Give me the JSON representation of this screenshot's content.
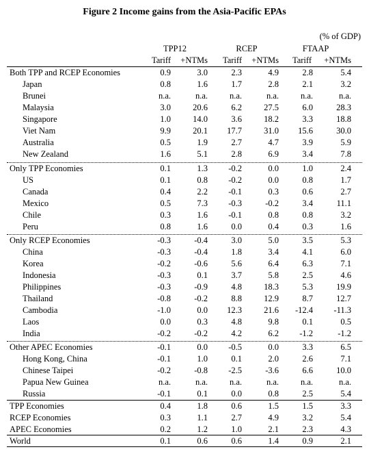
{
  "title": "Figure 2 Income gains from the Asia-Pacific EPAs",
  "unit": "(% of GDP)",
  "groups": [
    "TPP12",
    "RCEP",
    "FTAAP"
  ],
  "subheaders": [
    "Tariff",
    "+NTMs",
    "Tariff",
    "+NTMs",
    "Tariff",
    "+NTMs"
  ],
  "rows": [
    {
      "label": "Both TPP and RCEP Economies",
      "indent": false,
      "values": [
        "0.9",
        "3.0",
        "2.3",
        "4.9",
        "2.8",
        "5.4"
      ]
    },
    {
      "label": "Japan",
      "indent": true,
      "values": [
        "0.8",
        "1.6",
        "1.7",
        "2.8",
        "2.1",
        "3.2"
      ]
    },
    {
      "label": "Brunei",
      "indent": true,
      "values": [
        "n.a.",
        "n.a.",
        "n.a.",
        "n.a.",
        "n.a.",
        "n.a."
      ]
    },
    {
      "label": "Malaysia",
      "indent": true,
      "values": [
        "3.0",
        "20.6",
        "6.2",
        "27.5",
        "6.0",
        "28.3"
      ]
    },
    {
      "label": "Singapore",
      "indent": true,
      "values": [
        "1.0",
        "14.0",
        "3.6",
        "18.2",
        "3.3",
        "18.8"
      ]
    },
    {
      "label": "Viet Nam",
      "indent": true,
      "values": [
        "9.9",
        "20.1",
        "17.7",
        "31.0",
        "15.6",
        "30.0"
      ]
    },
    {
      "label": "Australia",
      "indent": true,
      "values": [
        "0.5",
        "1.9",
        "2.7",
        "4.7",
        "3.9",
        "5.9"
      ]
    },
    {
      "label": "New Zealand",
      "indent": true,
      "values": [
        "1.6",
        "5.1",
        "2.8",
        "6.9",
        "3.4",
        "7.8"
      ]
    },
    {
      "label": "Only TPP Economies",
      "indent": false,
      "values": [
        "0.1",
        "1.3",
        "-0.2",
        "0.0",
        "1.0",
        "2.4"
      ]
    },
    {
      "label": "US",
      "indent": true,
      "values": [
        "0.1",
        "0.8",
        "-0.2",
        "0.0",
        "0.8",
        "1.7"
      ]
    },
    {
      "label": "Canada",
      "indent": true,
      "values": [
        "0.4",
        "2.2",
        "-0.1",
        "0.3",
        "0.6",
        "2.7"
      ]
    },
    {
      "label": "Mexico",
      "indent": true,
      "values": [
        "0.5",
        "7.3",
        "-0.3",
        "-0.2",
        "3.4",
        "11.1"
      ]
    },
    {
      "label": "Chile",
      "indent": true,
      "values": [
        "0.3",
        "1.6",
        "-0.1",
        "0.8",
        "0.8",
        "3.2"
      ]
    },
    {
      "label": "Peru",
      "indent": true,
      "values": [
        "0.8",
        "1.6",
        "0.0",
        "0.4",
        "0.3",
        "1.6"
      ]
    },
    {
      "label": "Only RCEP Economies",
      "indent": false,
      "values": [
        "-0.3",
        "-0.4",
        "3.0",
        "5.0",
        "3.5",
        "5.3"
      ]
    },
    {
      "label": "China",
      "indent": true,
      "values": [
        "-0.3",
        "-0.4",
        "1.8",
        "3.4",
        "4.1",
        "6.0"
      ]
    },
    {
      "label": "Korea",
      "indent": true,
      "values": [
        "-0.2",
        "-0.6",
        "5.6",
        "6.4",
        "6.3",
        "7.1"
      ]
    },
    {
      "label": "Indonesia",
      "indent": true,
      "values": [
        "-0.3",
        "0.1",
        "3.7",
        "5.8",
        "2.5",
        "4.6"
      ]
    },
    {
      "label": "Philippines",
      "indent": true,
      "values": [
        "-0.3",
        "-0.9",
        "4.8",
        "18.3",
        "5.3",
        "19.9"
      ]
    },
    {
      "label": "Thailand",
      "indent": true,
      "values": [
        "-0.8",
        "-0.2",
        "8.8",
        "12.9",
        "8.7",
        "12.7"
      ]
    },
    {
      "label": "Cambodia",
      "indent": true,
      "values": [
        "-1.0",
        "0.0",
        "12.3",
        "21.6",
        "-12.4",
        "-11.3"
      ]
    },
    {
      "label": "Laos",
      "indent": true,
      "values": [
        "0.0",
        "0.3",
        "4.8",
        "9.8",
        "0.1",
        "0.5"
      ]
    },
    {
      "label": "India",
      "indent": true,
      "values": [
        "-0.2",
        "-0.2",
        "4.2",
        "6.2",
        "-1.2",
        "-1.2"
      ]
    },
    {
      "label": "Other APEC Economies",
      "indent": false,
      "values": [
        "-0.1",
        "0.0",
        "-0.5",
        "0.0",
        "3.3",
        "6.5"
      ]
    },
    {
      "label": "Hong Kong, China",
      "indent": true,
      "values": [
        "-0.1",
        "1.0",
        "0.1",
        "2.0",
        "2.6",
        "7.1"
      ]
    },
    {
      "label": "Chinese Taipei",
      "indent": true,
      "values": [
        "-0.2",
        "-0.8",
        "-2.5",
        "-3.6",
        "6.6",
        "10.0"
      ]
    },
    {
      "label": "Papua New Guinea",
      "indent": true,
      "values": [
        "n.a.",
        "n.a.",
        "n.a.",
        "n.a.",
        "n.a.",
        "n.a."
      ]
    },
    {
      "label": "Russia",
      "indent": true,
      "values": [
        "-0.1",
        "0.1",
        "0.0",
        "0.8",
        "2.5",
        "5.4"
      ]
    },
    {
      "label": "TPP Economies",
      "indent": false,
      "values": [
        "0.4",
        "1.8",
        "0.6",
        "1.5",
        "1.5",
        "3.3"
      ]
    },
    {
      "label": "RCEP Economies",
      "indent": false,
      "values": [
        "0.3",
        "1.1",
        "2.7",
        "4.9",
        "3.2",
        "5.4"
      ]
    },
    {
      "label": "APEC Economies",
      "indent": false,
      "values": [
        "0.2",
        "1.2",
        "1.0",
        "2.1",
        "2.3",
        "4.3"
      ]
    },
    {
      "label": "World",
      "indent": false,
      "values": [
        "0.1",
        "0.6",
        "0.6",
        "1.4",
        "0.9",
        "2.1"
      ]
    }
  ]
}
